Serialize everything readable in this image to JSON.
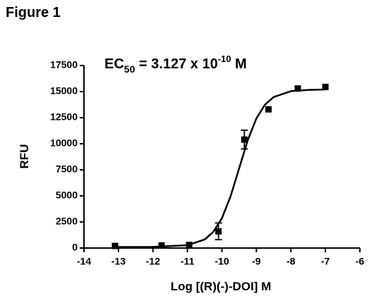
{
  "figure_label": "Figure 1",
  "chart_data": {
    "type": "scatter",
    "annotation": {
      "text": "EC",
      "sub": "50",
      "mid": " = 3.127 x 10",
      "sup": "-10",
      "end": " M"
    },
    "x_label": "Log [(R)(-)-DOI] M",
    "y_label": "RFU",
    "xlim": [
      -14,
      -6
    ],
    "ylim": [
      0,
      17500
    ],
    "xticks": [
      -14,
      -13,
      -12,
      -11,
      -10,
      -9,
      -8,
      -7,
      -6
    ],
    "yticks": [
      0,
      2500,
      5000,
      7500,
      10000,
      12500,
      15000,
      17500
    ],
    "series": [
      {
        "color": "#000000",
        "x": [
          -13.1,
          -11.75,
          -10.95,
          -10.1,
          -9.35,
          -8.65,
          -7.8,
          -7.0
        ],
        "values": [
          200,
          250,
          300,
          1600,
          10400,
          13300,
          15300,
          15450
        ],
        "errors": [
          null,
          null,
          null,
          800,
          900,
          null,
          null,
          null
        ]
      }
    ],
    "fit": {
      "color": "#000000",
      "x": [
        -13.1,
        -12,
        -11,
        -10.5,
        -10.25,
        -10,
        -9.75,
        -9.5,
        -9.25,
        -9,
        -8.75,
        -8.5,
        -8,
        -7.5,
        -7.0
      ],
      "values": [
        100,
        110,
        270,
        820,
        1550,
        2860,
        4950,
        7650,
        10350,
        12440,
        13750,
        14480,
        15040,
        15160,
        15200
      ]
    }
  }
}
